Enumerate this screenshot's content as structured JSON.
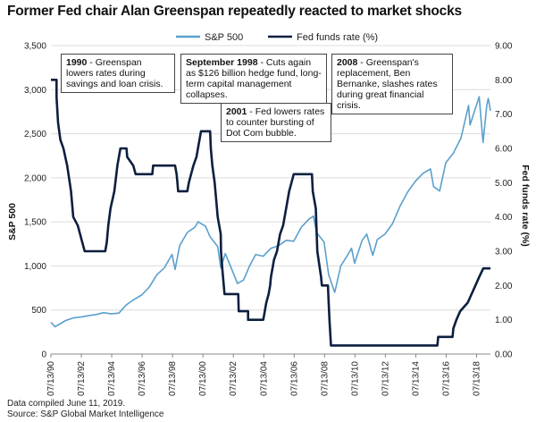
{
  "title": "Former Fed chair Alan Greenspan repeatedly reacted to market shocks",
  "footer": {
    "note": "Data compiled June 11, 2019.",
    "source": "Source: S&P Global Market Intelligence"
  },
  "colors": {
    "sp500": "#5aa0cc",
    "fedfunds": "#0d1f3f"
  },
  "annotations": [
    {
      "bold": "1990",
      "text": " - Greenspan lowers rates during savings and loan crisis."
    },
    {
      "bold": "September 1998",
      "text": " - Cuts again as $126 billion hedge fund, long-term capital management collapses."
    },
    {
      "bold": "2001",
      "text": " - Fed lowers rates to counter bursting of Dot Com bubble."
    },
    {
      "bold": "2008",
      "text": " - Greenspan's replacement, Ben Bernanke, slashes rates during great financial crisis."
    }
  ],
  "chart_data": {
    "type": "line",
    "title": "Former Fed chair Alan Greenspan repeatedly reacted to market shocks",
    "xlabel": "",
    "ylabel": "S&P 500",
    "y2label": "Fed funds rate (%)",
    "ylim": [
      0,
      3500
    ],
    "y2lim": [
      0,
      9
    ],
    "xlim": [
      1990.53,
      2019.44
    ],
    "x_ticks": [
      1990.53,
      1992.53,
      1994.53,
      1996.53,
      1998.53,
      2000.53,
      2002.53,
      2004.53,
      2006.53,
      2008.53,
      2010.53,
      2012.53,
      2014.53,
      2016.53,
      2018.53
    ],
    "x_tick_labels": [
      "07/13/90",
      "07/13/92",
      "07/13/94",
      "07/13/96",
      "07/13/98",
      "07/13/00",
      "07/13/02",
      "07/13/04",
      "07/13/06",
      "07/13/08",
      "07/13/10",
      "07/13/12",
      "07/13/14",
      "07/13/16",
      "07/13/18"
    ],
    "y_ticks": [
      0,
      500,
      1000,
      1500,
      2000,
      2500,
      3000,
      3500
    ],
    "y_tick_labels": [
      "0",
      "500",
      "1,000",
      "1,500",
      "2,000",
      "2,500",
      "3,000",
      "3,500"
    ],
    "y2_ticks": [
      0,
      1,
      2,
      3,
      4,
      5,
      6,
      7,
      8,
      9
    ],
    "y2_tick_labels": [
      "0.00",
      "1.00",
      "2.00",
      "3.00",
      "4.00",
      "5.00",
      "6.00",
      "7.00",
      "8.00",
      "9.00"
    ],
    "legend": [
      "S&P 500",
      "Fed funds rate (%)"
    ],
    "legend_position": "top-center",
    "series": [
      {
        "name": "S&P 500",
        "axis": "left",
        "points": [
          [
            1990.53,
            360
          ],
          [
            1990.8,
            310
          ],
          [
            1991.0,
            330
          ],
          [
            1991.5,
            380
          ],
          [
            1992.0,
            410
          ],
          [
            1992.5,
            420
          ],
          [
            1993.0,
            435
          ],
          [
            1993.5,
            448
          ],
          [
            1994.0,
            470
          ],
          [
            1994.5,
            455
          ],
          [
            1995.0,
            465
          ],
          [
            1995.5,
            560
          ],
          [
            1996.0,
            620
          ],
          [
            1996.5,
            670
          ],
          [
            1997.0,
            760
          ],
          [
            1997.5,
            900
          ],
          [
            1998.0,
            980
          ],
          [
            1998.5,
            1130
          ],
          [
            1998.7,
            960
          ],
          [
            1999.0,
            1230
          ],
          [
            1999.5,
            1380
          ],
          [
            2000.0,
            1440
          ],
          [
            2000.2,
            1500
          ],
          [
            2000.7,
            1450
          ],
          [
            2001.0,
            1330
          ],
          [
            2001.5,
            1220
          ],
          [
            2001.7,
            980
          ],
          [
            2002.0,
            1140
          ],
          [
            2002.5,
            930
          ],
          [
            2002.8,
            800
          ],
          [
            2003.2,
            840
          ],
          [
            2003.6,
            1000
          ],
          [
            2004.0,
            1130
          ],
          [
            2004.5,
            1110
          ],
          [
            2005.0,
            1200
          ],
          [
            2005.5,
            1230
          ],
          [
            2006.0,
            1290
          ],
          [
            2006.5,
            1280
          ],
          [
            2007.0,
            1440
          ],
          [
            2007.5,
            1530
          ],
          [
            2007.8,
            1565
          ],
          [
            2008.0,
            1380
          ],
          [
            2008.5,
            1270
          ],
          [
            2008.8,
            900
          ],
          [
            2009.2,
            700
          ],
          [
            2009.6,
            1000
          ],
          [
            2010.0,
            1110
          ],
          [
            2010.3,
            1200
          ],
          [
            2010.5,
            1030
          ],
          [
            2011.0,
            1290
          ],
          [
            2011.3,
            1360
          ],
          [
            2011.7,
            1120
          ],
          [
            2012.0,
            1300
          ],
          [
            2012.5,
            1360
          ],
          [
            2013.0,
            1480
          ],
          [
            2013.5,
            1680
          ],
          [
            2014.0,
            1840
          ],
          [
            2014.5,
            1960
          ],
          [
            2015.0,
            2050
          ],
          [
            2015.5,
            2100
          ],
          [
            2015.7,
            1900
          ],
          [
            2016.1,
            1850
          ],
          [
            2016.5,
            2170
          ],
          [
            2017.0,
            2280
          ],
          [
            2017.5,
            2450
          ],
          [
            2018.0,
            2820
          ],
          [
            2018.1,
            2600
          ],
          [
            2018.7,
            2920
          ],
          [
            2018.95,
            2400
          ],
          [
            2019.2,
            2820
          ],
          [
            2019.3,
            2900
          ],
          [
            2019.44,
            2760
          ]
        ]
      },
      {
        "name": "Fed funds rate (%)",
        "axis": "right",
        "points": [
          [
            1990.53,
            8.0
          ],
          [
            1990.9,
            8.0
          ],
          [
            1990.9,
            7.5
          ],
          [
            1991.0,
            6.75
          ],
          [
            1991.15,
            6.25
          ],
          [
            1991.35,
            6.0
          ],
          [
            1991.6,
            5.5
          ],
          [
            1991.85,
            4.75
          ],
          [
            1992.0,
            4.0
          ],
          [
            1992.3,
            3.75
          ],
          [
            1992.6,
            3.25
          ],
          [
            1992.75,
            3.0
          ],
          [
            1994.1,
            3.0
          ],
          [
            1994.2,
            3.25
          ],
          [
            1994.3,
            3.75
          ],
          [
            1994.45,
            4.25
          ],
          [
            1994.7,
            4.75
          ],
          [
            1994.9,
            5.5
          ],
          [
            1995.1,
            6.0
          ],
          [
            1995.5,
            6.0
          ],
          [
            1995.55,
            5.75
          ],
          [
            1995.95,
            5.5
          ],
          [
            1996.1,
            5.25
          ],
          [
            1997.2,
            5.25
          ],
          [
            1997.25,
            5.5
          ],
          [
            1998.7,
            5.5
          ],
          [
            1998.8,
            5.25
          ],
          [
            1998.85,
            5.0
          ],
          [
            1998.9,
            4.75
          ],
          [
            1999.5,
            4.75
          ],
          [
            1999.6,
            5.0
          ],
          [
            1999.75,
            5.25
          ],
          [
            1999.9,
            5.5
          ],
          [
            2000.1,
            5.75
          ],
          [
            2000.2,
            6.0
          ],
          [
            2000.4,
            6.5
          ],
          [
            2001.0,
            6.5
          ],
          [
            2001.05,
            6.0
          ],
          [
            2001.15,
            5.5
          ],
          [
            2001.3,
            5.0
          ],
          [
            2001.4,
            4.5
          ],
          [
            2001.5,
            4.0
          ],
          [
            2001.6,
            3.75
          ],
          [
            2001.7,
            3.5
          ],
          [
            2001.72,
            3.0
          ],
          [
            2001.8,
            2.5
          ],
          [
            2001.9,
            2.0
          ],
          [
            2001.95,
            1.75
          ],
          [
            2002.85,
            1.75
          ],
          [
            2002.88,
            1.25
          ],
          [
            2003.5,
            1.25
          ],
          [
            2003.5,
            1.0
          ],
          [
            2004.5,
            1.0
          ],
          [
            2004.6,
            1.25
          ],
          [
            2004.7,
            1.5
          ],
          [
            2004.85,
            1.75
          ],
          [
            2004.95,
            2.0
          ],
          [
            2005.0,
            2.25
          ],
          [
            2005.2,
            2.75
          ],
          [
            2005.4,
            3.0
          ],
          [
            2005.6,
            3.5
          ],
          [
            2005.8,
            3.75
          ],
          [
            2006.0,
            4.25
          ],
          [
            2006.2,
            4.75
          ],
          [
            2006.5,
            5.25
          ],
          [
            2007.7,
            5.25
          ],
          [
            2007.75,
            4.75
          ],
          [
            2007.85,
            4.5
          ],
          [
            2007.95,
            4.25
          ],
          [
            2008.05,
            3.0
          ],
          [
            2008.3,
            2.25
          ],
          [
            2008.35,
            2.0
          ],
          [
            2008.75,
            2.0
          ],
          [
            2008.8,
            1.5
          ],
          [
            2008.85,
            1.0
          ],
          [
            2008.95,
            0.25
          ],
          [
            2015.95,
            0.25
          ],
          [
            2016.0,
            0.5
          ],
          [
            2016.95,
            0.5
          ],
          [
            2017.0,
            0.75
          ],
          [
            2017.2,
            1.0
          ],
          [
            2017.45,
            1.25
          ],
          [
            2017.95,
            1.5
          ],
          [
            2018.2,
            1.75
          ],
          [
            2018.45,
            2.0
          ],
          [
            2018.7,
            2.25
          ],
          [
            2018.97,
            2.5
          ],
          [
            2019.44,
            2.5
          ]
        ]
      }
    ]
  }
}
